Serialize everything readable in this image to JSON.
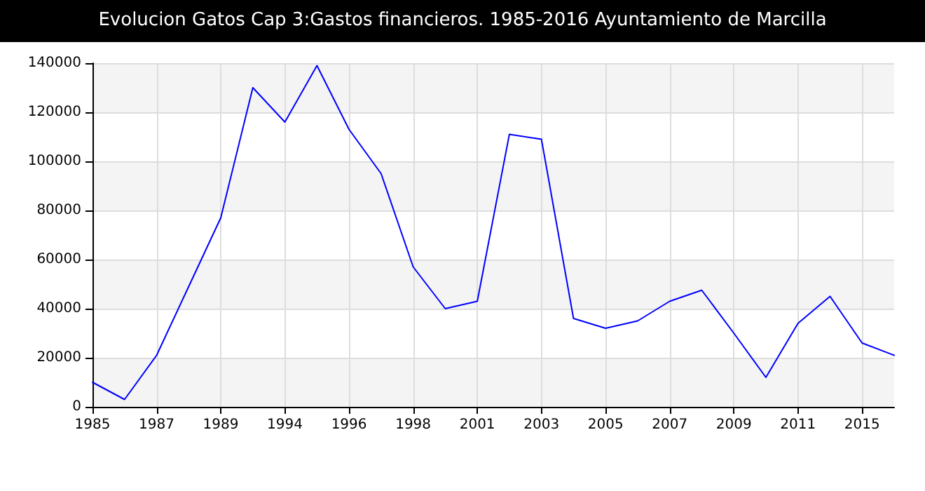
{
  "chart_data": {
    "type": "line",
    "title": "Evolucion Gatos Cap 3:Gastos financieros. 1985-2016 Ayuntamiento de Marcilla",
    "categories": [
      "1985",
      null,
      "1987",
      null,
      "1989",
      null,
      "1994",
      null,
      "1996",
      null,
      "1998",
      null,
      "2001",
      null,
      "2003",
      null,
      "2005",
      null,
      "2007",
      null,
      "2009",
      null,
      "2011",
      null,
      "2015",
      null
    ],
    "series": [
      {
        "color": "#0000ff",
        "values": [
          10000,
          3000,
          21000,
          49000,
          77000,
          130000,
          116000,
          139000,
          113000,
          95000,
          57000,
          40000,
          43000,
          111000,
          109000,
          36000,
          32000,
          35000,
          43000,
          47500,
          30000,
          12000,
          34000,
          45000,
          26000,
          21000
        ]
      }
    ],
    "ylim": [
      0,
      140000
    ],
    "yticks": [
      0,
      20000,
      40000,
      60000,
      80000,
      100000,
      120000,
      140000
    ],
    "grid": true,
    "marker": "none",
    "line_style": "solid"
  }
}
